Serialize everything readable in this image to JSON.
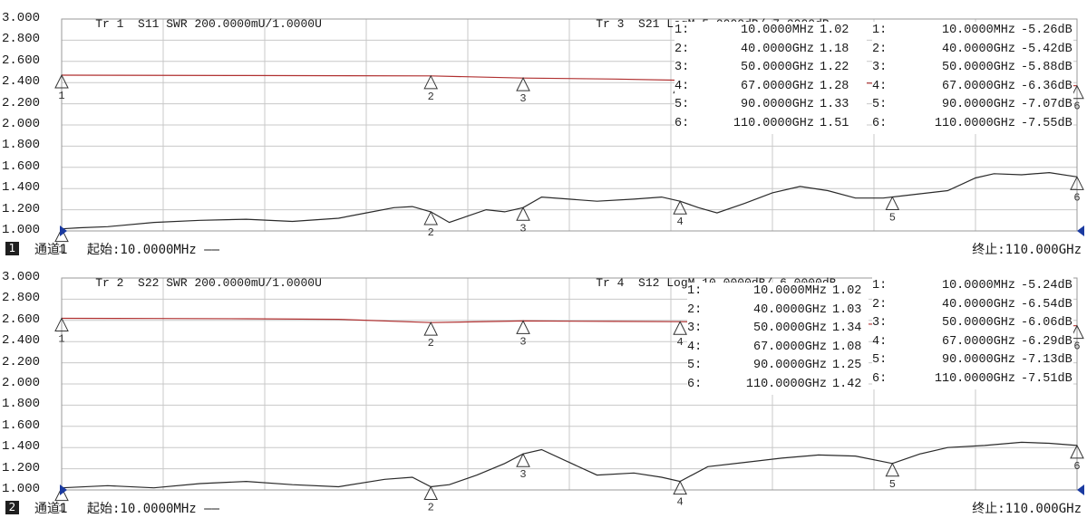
{
  "colors": {
    "top_trace": "#b03030",
    "bottom_trace": "#2a2a2a",
    "grid": "#c8c8c8",
    "marker": "#333333",
    "arrow": "#1a3aa0"
  },
  "chart_data": [
    {
      "type": "line",
      "yticks": [
        "3.000",
        "2.800",
        "2.600",
        "2.400",
        "2.200",
        "2.000",
        "1.800",
        "1.600",
        "1.400",
        "1.200",
        "1.000"
      ],
      "ylim": [
        1.0,
        3.0
      ],
      "xlim_ghz": [
        0.01,
        110
      ],
      "header_left": {
        "trace": "Tr 1",
        "param": "S11 SWR 200.0000mU/1.0000U"
      },
      "header_right": {
        "trace": "Tr 3",
        "param": "S21 LogM 5.0000dB/-7.0000dB"
      },
      "swr_markers": [
        {
          "num": "1:",
          "freq": "10.0000MHz",
          "value": "1.02"
        },
        {
          "num": "2:",
          "freq": "40.0000GHz",
          "value": "1.18"
        },
        {
          "num": "3:",
          "freq": "50.0000GHz",
          "value": "1.22"
        },
        {
          "num": "4:",
          "freq": "67.0000GHz",
          "value": "1.28"
        },
        {
          "num": "5:",
          "freq": "90.0000GHz",
          "value": "1.33"
        },
        {
          "num": "6:",
          "freq": "110.0000GHz",
          "value": "1.51"
        }
      ],
      "logm_markers": [
        {
          "num": "1:",
          "freq": "10.0000MHz",
          "value": "-5.26dB"
        },
        {
          "num": "2:",
          "freq": "40.0000GHz",
          "value": "-5.42dB"
        },
        {
          "num": "3:",
          "freq": "50.0000GHz",
          "value": "-5.88dB"
        },
        {
          "num": "4:",
          "freq": "67.0000GHz",
          "value": "-6.36dB"
        },
        {
          "num": "5:",
          "freq": "90.0000GHz",
          "value": "-7.07dB"
        },
        {
          "num": "6:",
          "freq": "110.0000GHz",
          "value": "-7.55dB"
        }
      ],
      "markers_x_ghz": [
        0.01,
        40,
        50,
        67,
        90,
        110
      ],
      "marker_labels": [
        "1",
        "2",
        "3",
        "4",
        "5",
        "6"
      ],
      "swr_trace": {
        "x": [
          0.01,
          2,
          5,
          10,
          15,
          20,
          25,
          30,
          33,
          36,
          38,
          40,
          42,
          44,
          46,
          48,
          50,
          52,
          55,
          58,
          62,
          65,
          67,
          69,
          71,
          74,
          77,
          80,
          83,
          86,
          89,
          91,
          93,
          96,
          99,
          101,
          104,
          107,
          110
        ],
        "y": [
          1.02,
          1.03,
          1.04,
          1.08,
          1.1,
          1.11,
          1.09,
          1.12,
          1.17,
          1.22,
          1.23,
          1.18,
          1.08,
          1.14,
          1.2,
          1.18,
          1.22,
          1.32,
          1.3,
          1.28,
          1.3,
          1.32,
          1.28,
          1.22,
          1.17,
          1.26,
          1.36,
          1.42,
          1.38,
          1.31,
          1.31,
          1.33,
          1.35,
          1.38,
          1.5,
          1.54,
          1.53,
          1.55,
          1.51
        ]
      },
      "logm_trace": {
        "x": [
          0.01,
          20,
          40,
          50,
          60,
          67,
          80,
          90,
          100,
          110
        ],
        "y": [
          -5.26,
          -5.33,
          -5.42,
          -5.88,
          -6.1,
          -6.36,
          -6.7,
          -7.07,
          -7.3,
          -7.55
        ]
      },
      "footer": {
        "channel_num": "1",
        "channel_label": "通道1",
        "start": "起始:10.0000MHz ——",
        "stop": "终止:110.000GHz"
      }
    },
    {
      "type": "line",
      "yticks": [
        "3.000",
        "2.800",
        "2.600",
        "2.400",
        "2.200",
        "2.000",
        "1.800",
        "1.600",
        "1.400",
        "1.200",
        "1.000"
      ],
      "ylim": [
        1.0,
        3.0
      ],
      "xlim_ghz": [
        0.01,
        110
      ],
      "header_left": {
        "trace": "Tr 2",
        "param": "S22 SWR 200.0000mU/1.0000U"
      },
      "header_right": {
        "trace": "Tr 4",
        "param": "S12 LogM 10.0000dB/-6.0000dB"
      },
      "swr_markers": [
        {
          "num": "1:",
          "freq": "10.0000MHz",
          "value": "1.02"
        },
        {
          "num": "2:",
          "freq": "40.0000GHz",
          "value": "1.03"
        },
        {
          "num": "3:",
          "freq": "50.0000GHz",
          "value": "1.34"
        },
        {
          "num": "4:",
          "freq": "67.0000GHz",
          "value": "1.08"
        },
        {
          "num": "5:",
          "freq": "90.0000GHz",
          "value": "1.25"
        },
        {
          "num": "6:",
          "freq": "110.0000GHz",
          "value": "1.42"
        }
      ],
      "logm_markers": [
        {
          "num": "1:",
          "freq": "10.0000MHz",
          "value": "-5.24dB"
        },
        {
          "num": "2:",
          "freq": "40.0000GHz",
          "value": "-6.54dB"
        },
        {
          "num": "3:",
          "freq": "50.0000GHz",
          "value": "-6.06dB"
        },
        {
          "num": "4:",
          "freq": "67.0000GHz",
          "value": "-6.29dB"
        },
        {
          "num": "5:",
          "freq": "90.0000GHz",
          "value": "-7.13dB"
        },
        {
          "num": "6:",
          "freq": "110.0000GHz",
          "value": "-7.51dB"
        }
      ],
      "markers_x_ghz": [
        0.01,
        40,
        50,
        67,
        90,
        110
      ],
      "marker_labels": [
        "1",
        "2",
        "3",
        "4",
        "5",
        "6"
      ],
      "swr_trace": {
        "x": [
          0.01,
          5,
          10,
          15,
          20,
          25,
          30,
          35,
          38,
          40,
          42,
          45,
          48,
          50,
          52,
          55,
          58,
          62,
          65,
          67,
          70,
          74,
          78,
          82,
          86,
          90,
          93,
          96,
          100,
          104,
          107,
          110
        ],
        "y": [
          1.02,
          1.04,
          1.02,
          1.06,
          1.08,
          1.05,
          1.03,
          1.1,
          1.12,
          1.03,
          1.05,
          1.14,
          1.25,
          1.34,
          1.38,
          1.26,
          1.14,
          1.16,
          1.12,
          1.08,
          1.22,
          1.26,
          1.3,
          1.33,
          1.32,
          1.25,
          1.34,
          1.4,
          1.42,
          1.45,
          1.44,
          1.42
        ]
      },
      "logm_trace": {
        "x": [
          0.01,
          10,
          20,
          30,
          40,
          50,
          60,
          67,
          80,
          90,
          100,
          110
        ],
        "y": [
          -5.24,
          -5.3,
          -5.4,
          -5.55,
          -6.54,
          -6.06,
          -6.18,
          -6.29,
          -6.7,
          -7.13,
          -7.35,
          -7.51
        ]
      },
      "footer": {
        "channel_num": "2",
        "channel_label": "通道1",
        "start": "起始:10.0000MHz ——",
        "stop": "终止:110.000GHz"
      }
    }
  ]
}
